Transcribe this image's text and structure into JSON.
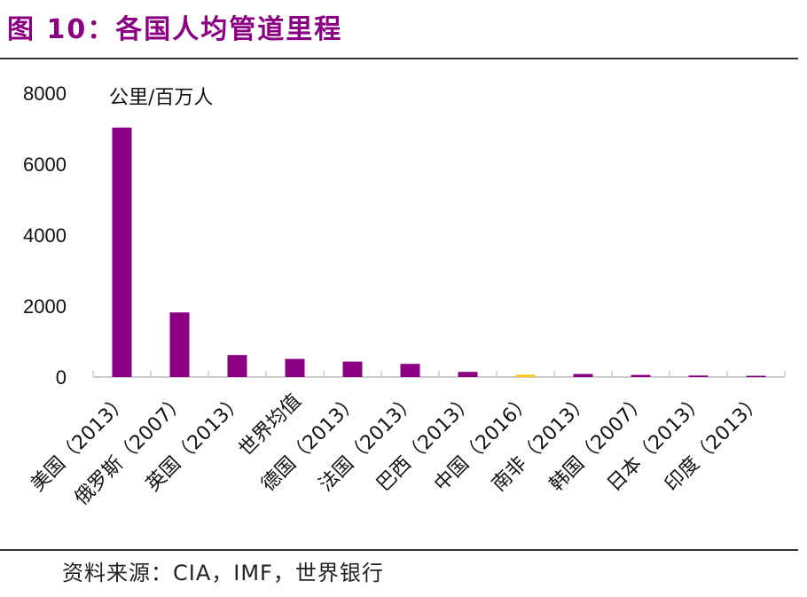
{
  "title": "图 10：各国人均管道里程",
  "source": "资料来源：CIA，IMF，世界银行",
  "chart_data": {
    "type": "bar",
    "title": "图 10：各国人均管道里程",
    "ylabel": "公里/百万人",
    "ylim": [
      0,
      8000
    ],
    "yticks": [
      0,
      2000,
      4000,
      6000,
      8000
    ],
    "grid": false,
    "categories": [
      "美国（2013）",
      "俄罗斯（2007）",
      "英国（2013）",
      "世界均值",
      "德国（2013）",
      "法国（2013）",
      "巴西（2013）",
      "中国（2016）",
      "南非（2013）",
      "韩国（2007）",
      "日本（2013）",
      "印度（2013）"
    ],
    "values": [
      7030,
      1820,
      620,
      510,
      435,
      370,
      145,
      65,
      85,
      60,
      42,
      35
    ],
    "colors": {
      "default": "#8b0082",
      "highlight": "#f5c518"
    },
    "highlight_category": "中国（2016）"
  }
}
